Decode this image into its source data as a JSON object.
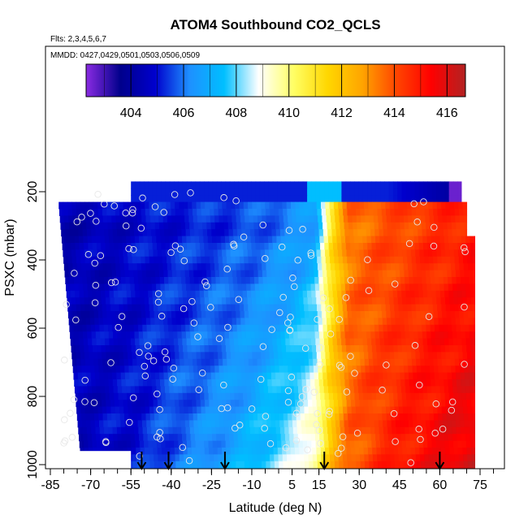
{
  "chart_data": {
    "type": "heatmap",
    "title": "ATOM4 Southbound CO2_QCLS",
    "flights_note": "Flts: 2,3,4,5,6,7",
    "dates_note": "MMDD: 0427,0429,0501,0503,0506,0509",
    "xlabel": "Latitude (deg N)",
    "ylabel": "PSXC (mbar)",
    "x_ticks": [
      -85,
      -70,
      -55,
      -40,
      -25,
      -10,
      5,
      15,
      30,
      45,
      60,
      75
    ],
    "x_tick_labels": [
      "-85",
      "-70",
      "-55",
      "-40",
      "-25",
      "-10",
      "5",
      "15",
      "30",
      "45",
      "60",
      "75"
    ],
    "y_ticks": [
      200,
      400,
      600,
      800,
      1000
    ],
    "y_tick_labels": [
      "200",
      "400",
      "600",
      "800",
      "1000"
    ],
    "y_reversed": true,
    "xlim": [
      -88,
      90
    ],
    "ylim": [
      1020,
      140
    ],
    "colorbar": {
      "range": [
        402.3,
        416.7
      ],
      "ticks": [
        404,
        406,
        408,
        410,
        412,
        414,
        416
      ],
      "tick_labels": [
        "404",
        "406",
        "408",
        "410",
        "412",
        "414",
        "416"
      ],
      "colors": [
        "#8a2be2",
        "#00008b",
        "#0000cd",
        "#1e90ff",
        "#00bfff",
        "#ffffff",
        "#ffff66",
        "#ffd700",
        "#ffa500",
        "#ff4500",
        "#ff0000",
        "#b22222"
      ]
    },
    "profile_latitudes": [
      -51,
      -41,
      -20,
      17,
      60
    ],
    "field": {
      "description": "Gridded CO2 (ppm) curtain: latitude vs pressure",
      "latitude_knots": [
        -82,
        -70,
        -55,
        -40,
        -25,
        -10,
        5,
        13,
        18,
        25,
        35,
        45,
        55,
        65,
        72
      ],
      "values_at_200mbar": [
        404.3,
        404.5,
        404.8,
        405.0,
        405.2,
        405.4,
        405.9,
        406.4,
        410.3,
        413.4,
        413.7,
        414.0,
        414.3,
        414.6,
        414.8
      ],
      "values_at_1000mbar": [
        404.5,
        404.7,
        405.0,
        405.8,
        406.5,
        407.4,
        408.6,
        409.8,
        411.8,
        413.6,
        414.4,
        415.0,
        415.4,
        415.8,
        416.0
      ],
      "top_row_200mbar_note": "Top row near 180 mbar: mostly 404-406 with purple (402.5) at 65N"
    }
  }
}
